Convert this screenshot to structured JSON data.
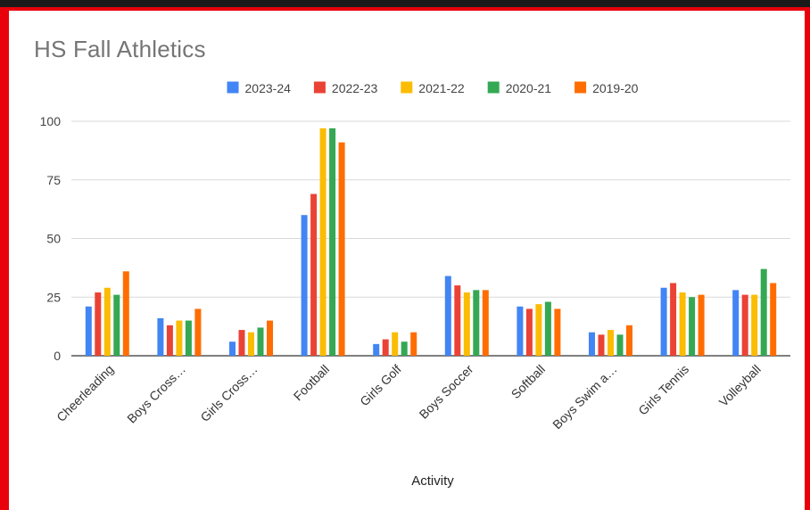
{
  "chart_data": {
    "type": "bar",
    "title": "HS Fall Athletics",
    "xlabel": "Activity",
    "ylabel": "",
    "ylim": [
      0,
      100
    ],
    "yticks": [
      0,
      25,
      50,
      75,
      100
    ],
    "grid": true,
    "legend_position": "top",
    "categories": [
      "Cheerleading",
      "Boys Cross…",
      "Girls Cross…",
      "Football",
      "Girls Golf",
      "Boys Soccer",
      "Softball",
      "Boys Swim a…",
      "Girls Tennis",
      "Volleyball"
    ],
    "series": [
      {
        "name": "2023-24",
        "color": "#4285f4",
        "values": [
          21,
          16,
          6,
          60,
          5,
          34,
          21,
          10,
          29,
          28
        ]
      },
      {
        "name": "2022-23",
        "color": "#ea4335",
        "values": [
          27,
          13,
          11,
          69,
          7,
          30,
          20,
          9,
          31,
          26
        ]
      },
      {
        "name": "2021-22",
        "color": "#fbbc04",
        "values": [
          29,
          15,
          10,
          97,
          10,
          27,
          22,
          11,
          27,
          26
        ]
      },
      {
        "name": "2020-21",
        "color": "#34a853",
        "values": [
          26,
          15,
          12,
          97,
          6,
          28,
          23,
          9,
          25,
          37
        ]
      },
      {
        "name": "2019-20",
        "color": "#ff6d01",
        "values": [
          36,
          20,
          15,
          91,
          10,
          28,
          20,
          13,
          26,
          31
        ]
      }
    ]
  }
}
